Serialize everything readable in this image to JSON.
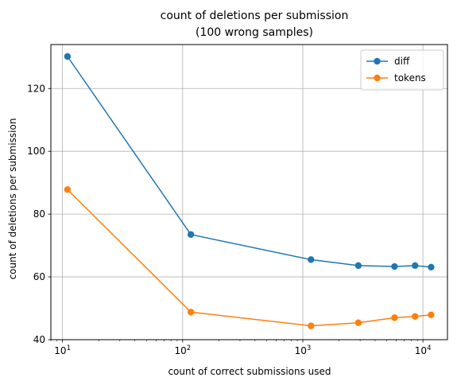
{
  "chart_data": {
    "type": "line",
    "title": "count of deletions per submission",
    "subtitle": "(100 wrong samples)",
    "xlabel": "count of correct submissions used",
    "ylabel": "count of deletions per submission",
    "x_scale": "log",
    "xlim": [
      8,
      16000
    ],
    "ylim": [
      40,
      134
    ],
    "x_ticks": [
      {
        "value": 10,
        "base": "10",
        "exp": "1"
      },
      {
        "value": 100,
        "base": "10",
        "exp": "2"
      },
      {
        "value": 1000,
        "base": "10",
        "exp": "3"
      },
      {
        "value": 10000,
        "base": "10",
        "exp": "4"
      }
    ],
    "y_ticks": [
      {
        "value": 40,
        "label": "40"
      },
      {
        "value": 60,
        "label": "60"
      },
      {
        "value": 80,
        "label": "80"
      },
      {
        "value": 100,
        "label": "100"
      },
      {
        "value": 120,
        "label": "120"
      }
    ],
    "grid": true,
    "legend_position": "top-right",
    "series": [
      {
        "name": "diff",
        "color": "#1f77b4",
        "x": [
          11,
          117,
          1170,
          2900,
          5800,
          8600,
          11700
        ],
        "y": [
          130.2,
          73.5,
          65.5,
          63.6,
          63.3,
          63.6,
          63.1
        ]
      },
      {
        "name": "tokens",
        "color": "#ff7f0e",
        "x": [
          11,
          117,
          1170,
          2900,
          5800,
          8600,
          11700
        ],
        "y": [
          87.8,
          48.8,
          44.4,
          45.4,
          47.0,
          47.4,
          47.9
        ]
      }
    ]
  }
}
